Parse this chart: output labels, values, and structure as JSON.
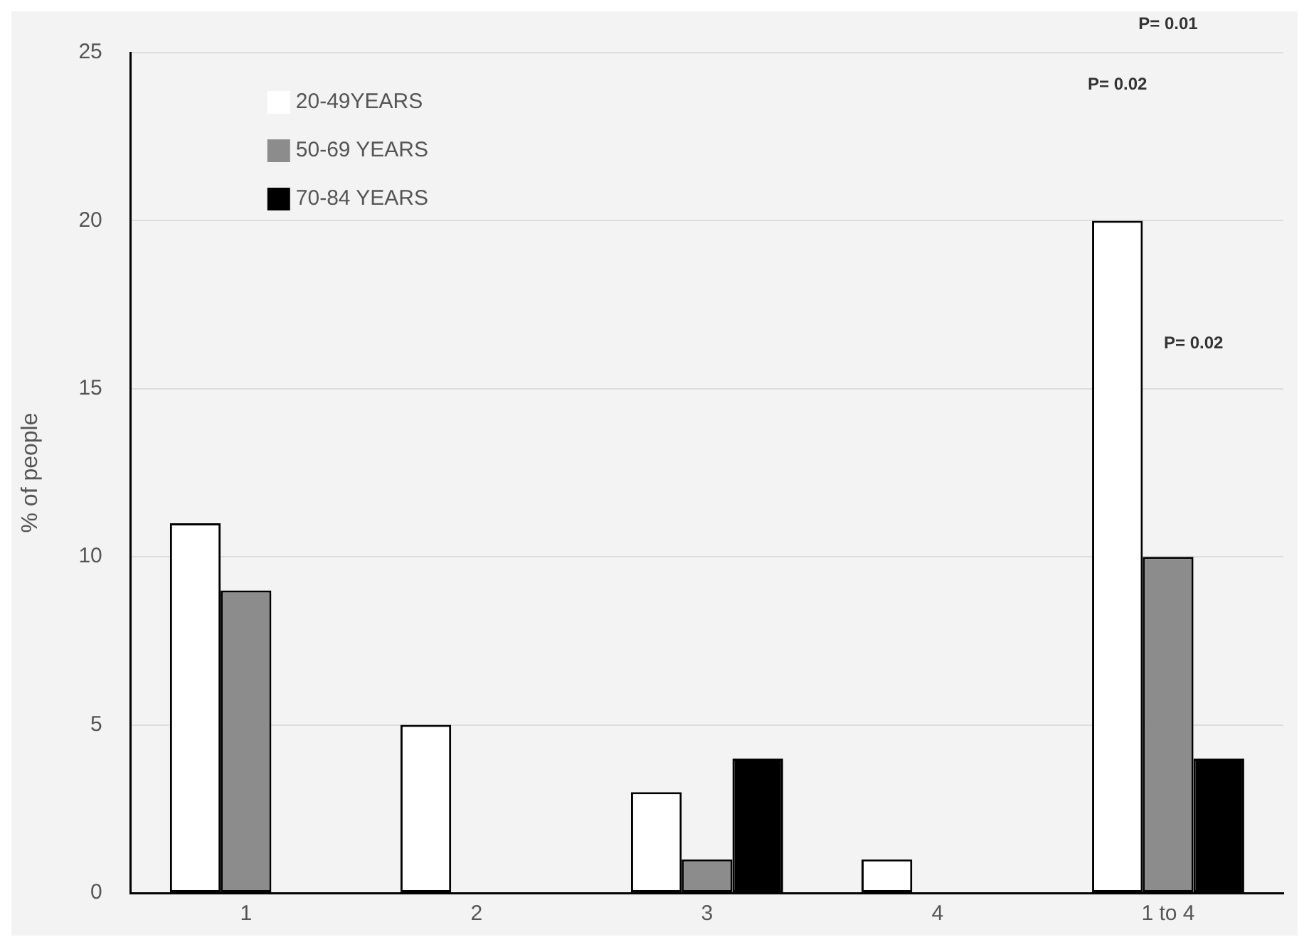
{
  "chart_data": {
    "type": "bar",
    "ylabel": "% of people",
    "categories": [
      "1",
      "2",
      "3",
      "4",
      "1 to 4"
    ],
    "series": [
      {
        "name": "20-49YEARS",
        "color": "#ffffff",
        "values": [
          11,
          5,
          3,
          1,
          20
        ]
      },
      {
        "name": "50-69 YEARS",
        "color": "#8c8c8c",
        "values": [
          9,
          0,
          1,
          0,
          10
        ]
      },
      {
        "name": "70-84 YEARS",
        "color": "#000000",
        "values": [
          0,
          0,
          4,
          0,
          4
        ]
      }
    ],
    "ylim": [
      0,
      25
    ],
    "yticks": [
      0,
      5,
      10,
      15,
      20,
      25
    ],
    "grid": "y",
    "legend": "top left",
    "annotations": [
      "P= 0.01",
      "P= 0.02",
      "P= 0.02"
    ]
  }
}
